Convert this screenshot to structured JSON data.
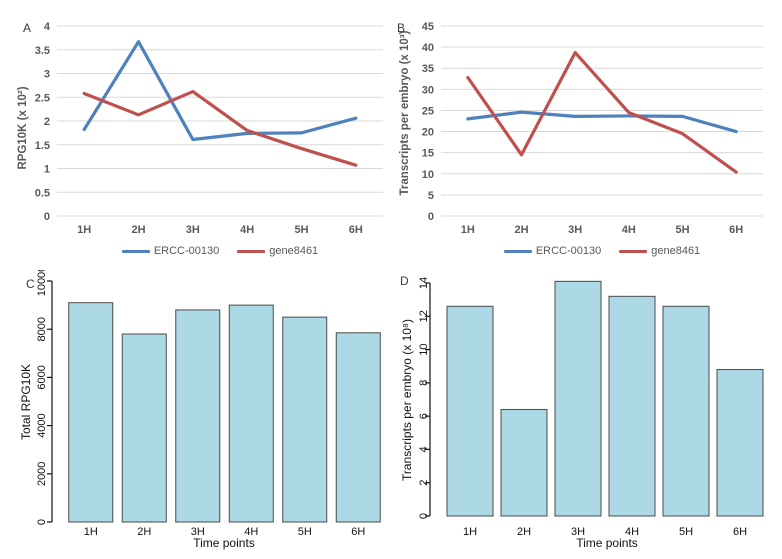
{
  "figure": {
    "background": "#ffffff"
  },
  "colors": {
    "gridline": "#D9D9D9",
    "excel_text": "#595959",
    "r_text": "#111111",
    "bar_fill": "#ADD8E6",
    "bar_border": "#4A4A4A",
    "series_blue": "#4F81BD",
    "series_red": "#C0504D"
  },
  "chart_data": [
    {
      "id": "a",
      "panel_letter": "A",
      "type": "line",
      "title": "",
      "xlabel": "",
      "ylabel": "RPG10K (x 10²)",
      "ylim": [
        0,
        4
      ],
      "ytick_step": 0.5,
      "grid": true,
      "legend_position": "bottom",
      "categories": [
        "1H",
        "2H",
        "3H",
        "4H",
        "5H",
        "6H"
      ],
      "series": [
        {
          "name": "ERCC-00130",
          "color": "#4F81BD",
          "values": [
            1.82,
            3.67,
            1.61,
            1.74,
            1.75,
            2.06
          ]
        },
        {
          "name": "gene8461",
          "color": "#C0504D",
          "values": [
            2.58,
            2.13,
            2.62,
            1.8,
            1.42,
            1.07
          ]
        }
      ]
    },
    {
      "id": "b",
      "panel_letter": "B",
      "type": "line",
      "title": "",
      "xlabel": "",
      "ylabel": "Transcripts per embryo (x 10³)",
      "ylim": [
        0,
        45
      ],
      "ytick_step": 5,
      "grid": true,
      "legend_position": "bottom",
      "categories": [
        "1H",
        "2H",
        "3H",
        "4H",
        "5H",
        "6H"
      ],
      "series": [
        {
          "name": "ERCC-00130",
          "color": "#4F81BD",
          "values": [
            23.0,
            24.6,
            23.6,
            23.7,
            23.6,
            20.0
          ]
        },
        {
          "name": "gene8461",
          "color": "#C0504D",
          "values": [
            32.8,
            14.5,
            38.7,
            24.5,
            19.5,
            10.4
          ]
        }
      ]
    },
    {
      "id": "c",
      "panel_letter": "C",
      "type": "bar",
      "title": "",
      "xlabel": "Time points",
      "ylabel": "Total RPG10K",
      "ylim": [
        0,
        10000
      ],
      "ytick_step": 2000,
      "grid": false,
      "categories": [
        "1H",
        "2H",
        "3H",
        "4H",
        "5H",
        "6H"
      ],
      "values": [
        9100,
        7800,
        8800,
        9000,
        8500,
        7850
      ],
      "bar_fill": "#ADD8E6",
      "bar_border": "#4A4A4A"
    },
    {
      "id": "d",
      "panel_letter": "D",
      "type": "bar",
      "title": "",
      "xlabel": "Time points",
      "ylabel": "Transcripts per embryo (x 10⁸)",
      "ylim": [
        0,
        14
      ],
      "ytick_step": 2,
      "grid": false,
      "categories": [
        "1H",
        "2H",
        "3H",
        "4H",
        "5H",
        "6H"
      ],
      "values": [
        12.6,
        6.4,
        14.1,
        13.2,
        12.6,
        8.8
      ],
      "bar_fill": "#ADD8E6",
      "bar_border": "#4A4A4A"
    }
  ]
}
